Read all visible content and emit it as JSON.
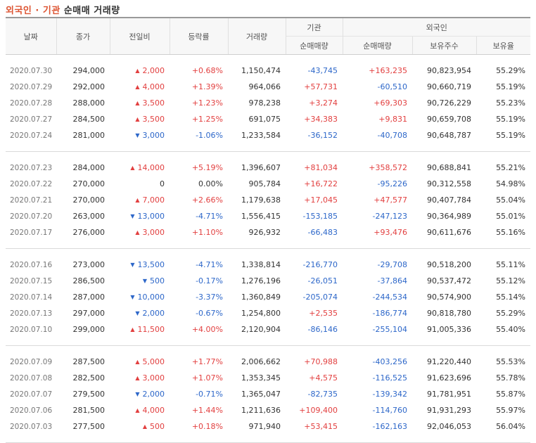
{
  "title": {
    "part1": "외국인 · 기관",
    "part2": " 순매매 거래량"
  },
  "headers": {
    "date": "날짜",
    "close": "종가",
    "change": "전일비",
    "rate": "등락률",
    "volume": "거래량",
    "inst_group": "기관",
    "inst_net": "순매매량",
    "foreign_group": "외국인",
    "foreign_net": "순매매량",
    "foreign_hold": "보유주수",
    "foreign_ratio": "보유율"
  },
  "colors": {
    "up": "#e23f3f",
    "down": "#2d67c9"
  },
  "groups": [
    [
      {
        "date": "2020.07.30",
        "close": "294,000",
        "dir": "up",
        "change": "2,000",
        "rate": "+0.68%",
        "volume": "1,150,474",
        "inst": "-43,745",
        "foreign": "+163,235",
        "hold": "90,823,954",
        "ratio": "55.29%"
      },
      {
        "date": "2020.07.29",
        "close": "292,000",
        "dir": "up",
        "change": "4,000",
        "rate": "+1.39%",
        "volume": "964,066",
        "inst": "+57,731",
        "foreign": "-60,510",
        "hold": "90,660,719",
        "ratio": "55.19%"
      },
      {
        "date": "2020.07.28",
        "close": "288,000",
        "dir": "up",
        "change": "3,500",
        "rate": "+1.23%",
        "volume": "978,238",
        "inst": "+3,274",
        "foreign": "+69,303",
        "hold": "90,726,229",
        "ratio": "55.23%"
      },
      {
        "date": "2020.07.27",
        "close": "284,500",
        "dir": "up",
        "change": "3,500",
        "rate": "+1.25%",
        "volume": "691,075",
        "inst": "+34,383",
        "foreign": "+9,831",
        "hold": "90,659,708",
        "ratio": "55.19%"
      },
      {
        "date": "2020.07.24",
        "close": "281,000",
        "dir": "down",
        "change": "3,000",
        "rate": "-1.06%",
        "volume": "1,233,584",
        "inst": "-36,152",
        "foreign": "-40,708",
        "hold": "90,648,787",
        "ratio": "55.19%"
      }
    ],
    [
      {
        "date": "2020.07.23",
        "close": "284,000",
        "dir": "up",
        "change": "14,000",
        "rate": "+5.19%",
        "volume": "1,396,607",
        "inst": "+81,034",
        "foreign": "+358,572",
        "hold": "90,688,841",
        "ratio": "55.21%"
      },
      {
        "date": "2020.07.22",
        "close": "270,000",
        "dir": "none",
        "change": "0",
        "rate": "0.00%",
        "volume": "905,784",
        "inst": "+16,722",
        "foreign": "-95,226",
        "hold": "90,312,558",
        "ratio": "54.98%"
      },
      {
        "date": "2020.07.21",
        "close": "270,000",
        "dir": "up",
        "change": "7,000",
        "rate": "+2.66%",
        "volume": "1,179,638",
        "inst": "+17,045",
        "foreign": "+47,577",
        "hold": "90,407,784",
        "ratio": "55.04%"
      },
      {
        "date": "2020.07.20",
        "close": "263,000",
        "dir": "down",
        "change": "13,000",
        "rate": "-4.71%",
        "volume": "1,556,415",
        "inst": "-153,185",
        "foreign": "-247,123",
        "hold": "90,364,989",
        "ratio": "55.01%"
      },
      {
        "date": "2020.07.17",
        "close": "276,000",
        "dir": "up",
        "change": "3,000",
        "rate": "+1.10%",
        "volume": "926,932",
        "inst": "-66,483",
        "foreign": "+93,476",
        "hold": "90,611,676",
        "ratio": "55.16%"
      }
    ],
    [
      {
        "date": "2020.07.16",
        "close": "273,000",
        "dir": "down",
        "change": "13,500",
        "rate": "-4.71%",
        "volume": "1,338,814",
        "inst": "-216,770",
        "foreign": "-29,708",
        "hold": "90,518,200",
        "ratio": "55.11%"
      },
      {
        "date": "2020.07.15",
        "close": "286,500",
        "dir": "down",
        "change": "500",
        "rate": "-0.17%",
        "volume": "1,276,196",
        "inst": "-26,051",
        "foreign": "-37,864",
        "hold": "90,537,472",
        "ratio": "55.12%"
      },
      {
        "date": "2020.07.14",
        "close": "287,000",
        "dir": "down",
        "change": "10,000",
        "rate": "-3.37%",
        "volume": "1,360,849",
        "inst": "-205,074",
        "foreign": "-244,534",
        "hold": "90,574,900",
        "ratio": "55.14%"
      },
      {
        "date": "2020.07.13",
        "close": "297,000",
        "dir": "down",
        "change": "2,000",
        "rate": "-0.67%",
        "volume": "1,254,800",
        "inst": "+2,535",
        "foreign": "-186,774",
        "hold": "90,818,780",
        "ratio": "55.29%"
      },
      {
        "date": "2020.07.10",
        "close": "299,000",
        "dir": "up",
        "change": "11,500",
        "rate": "+4.00%",
        "volume": "2,120,904",
        "inst": "-86,146",
        "foreign": "-255,104",
        "hold": "91,005,336",
        "ratio": "55.40%"
      }
    ],
    [
      {
        "date": "2020.07.09",
        "close": "287,500",
        "dir": "up",
        "change": "5,000",
        "rate": "+1.77%",
        "volume": "2,006,662",
        "inst": "+70,988",
        "foreign": "-403,256",
        "hold": "91,220,440",
        "ratio": "55.53%"
      },
      {
        "date": "2020.07.08",
        "close": "282,500",
        "dir": "up",
        "change": "3,000",
        "rate": "+1.07%",
        "volume": "1,353,345",
        "inst": "+4,575",
        "foreign": "-116,525",
        "hold": "91,623,696",
        "ratio": "55.78%"
      },
      {
        "date": "2020.07.07",
        "close": "279,500",
        "dir": "down",
        "change": "2,000",
        "rate": "-0.71%",
        "volume": "1,365,047",
        "inst": "-82,735",
        "foreign": "-139,342",
        "hold": "91,781,951",
        "ratio": "55.87%"
      },
      {
        "date": "2020.07.06",
        "close": "281,500",
        "dir": "up",
        "change": "4,000",
        "rate": "+1.44%",
        "volume": "1,211,636",
        "inst": "+109,400",
        "foreign": "-114,760",
        "hold": "91,931,293",
        "ratio": "55.97%"
      },
      {
        "date": "2020.07.03",
        "close": "277,500",
        "dir": "up",
        "change": "500",
        "rate": "+0.18%",
        "volume": "971,940",
        "inst": "+53,415",
        "foreign": "-162,163",
        "hold": "92,046,053",
        "ratio": "56.04%"
      }
    ]
  ]
}
